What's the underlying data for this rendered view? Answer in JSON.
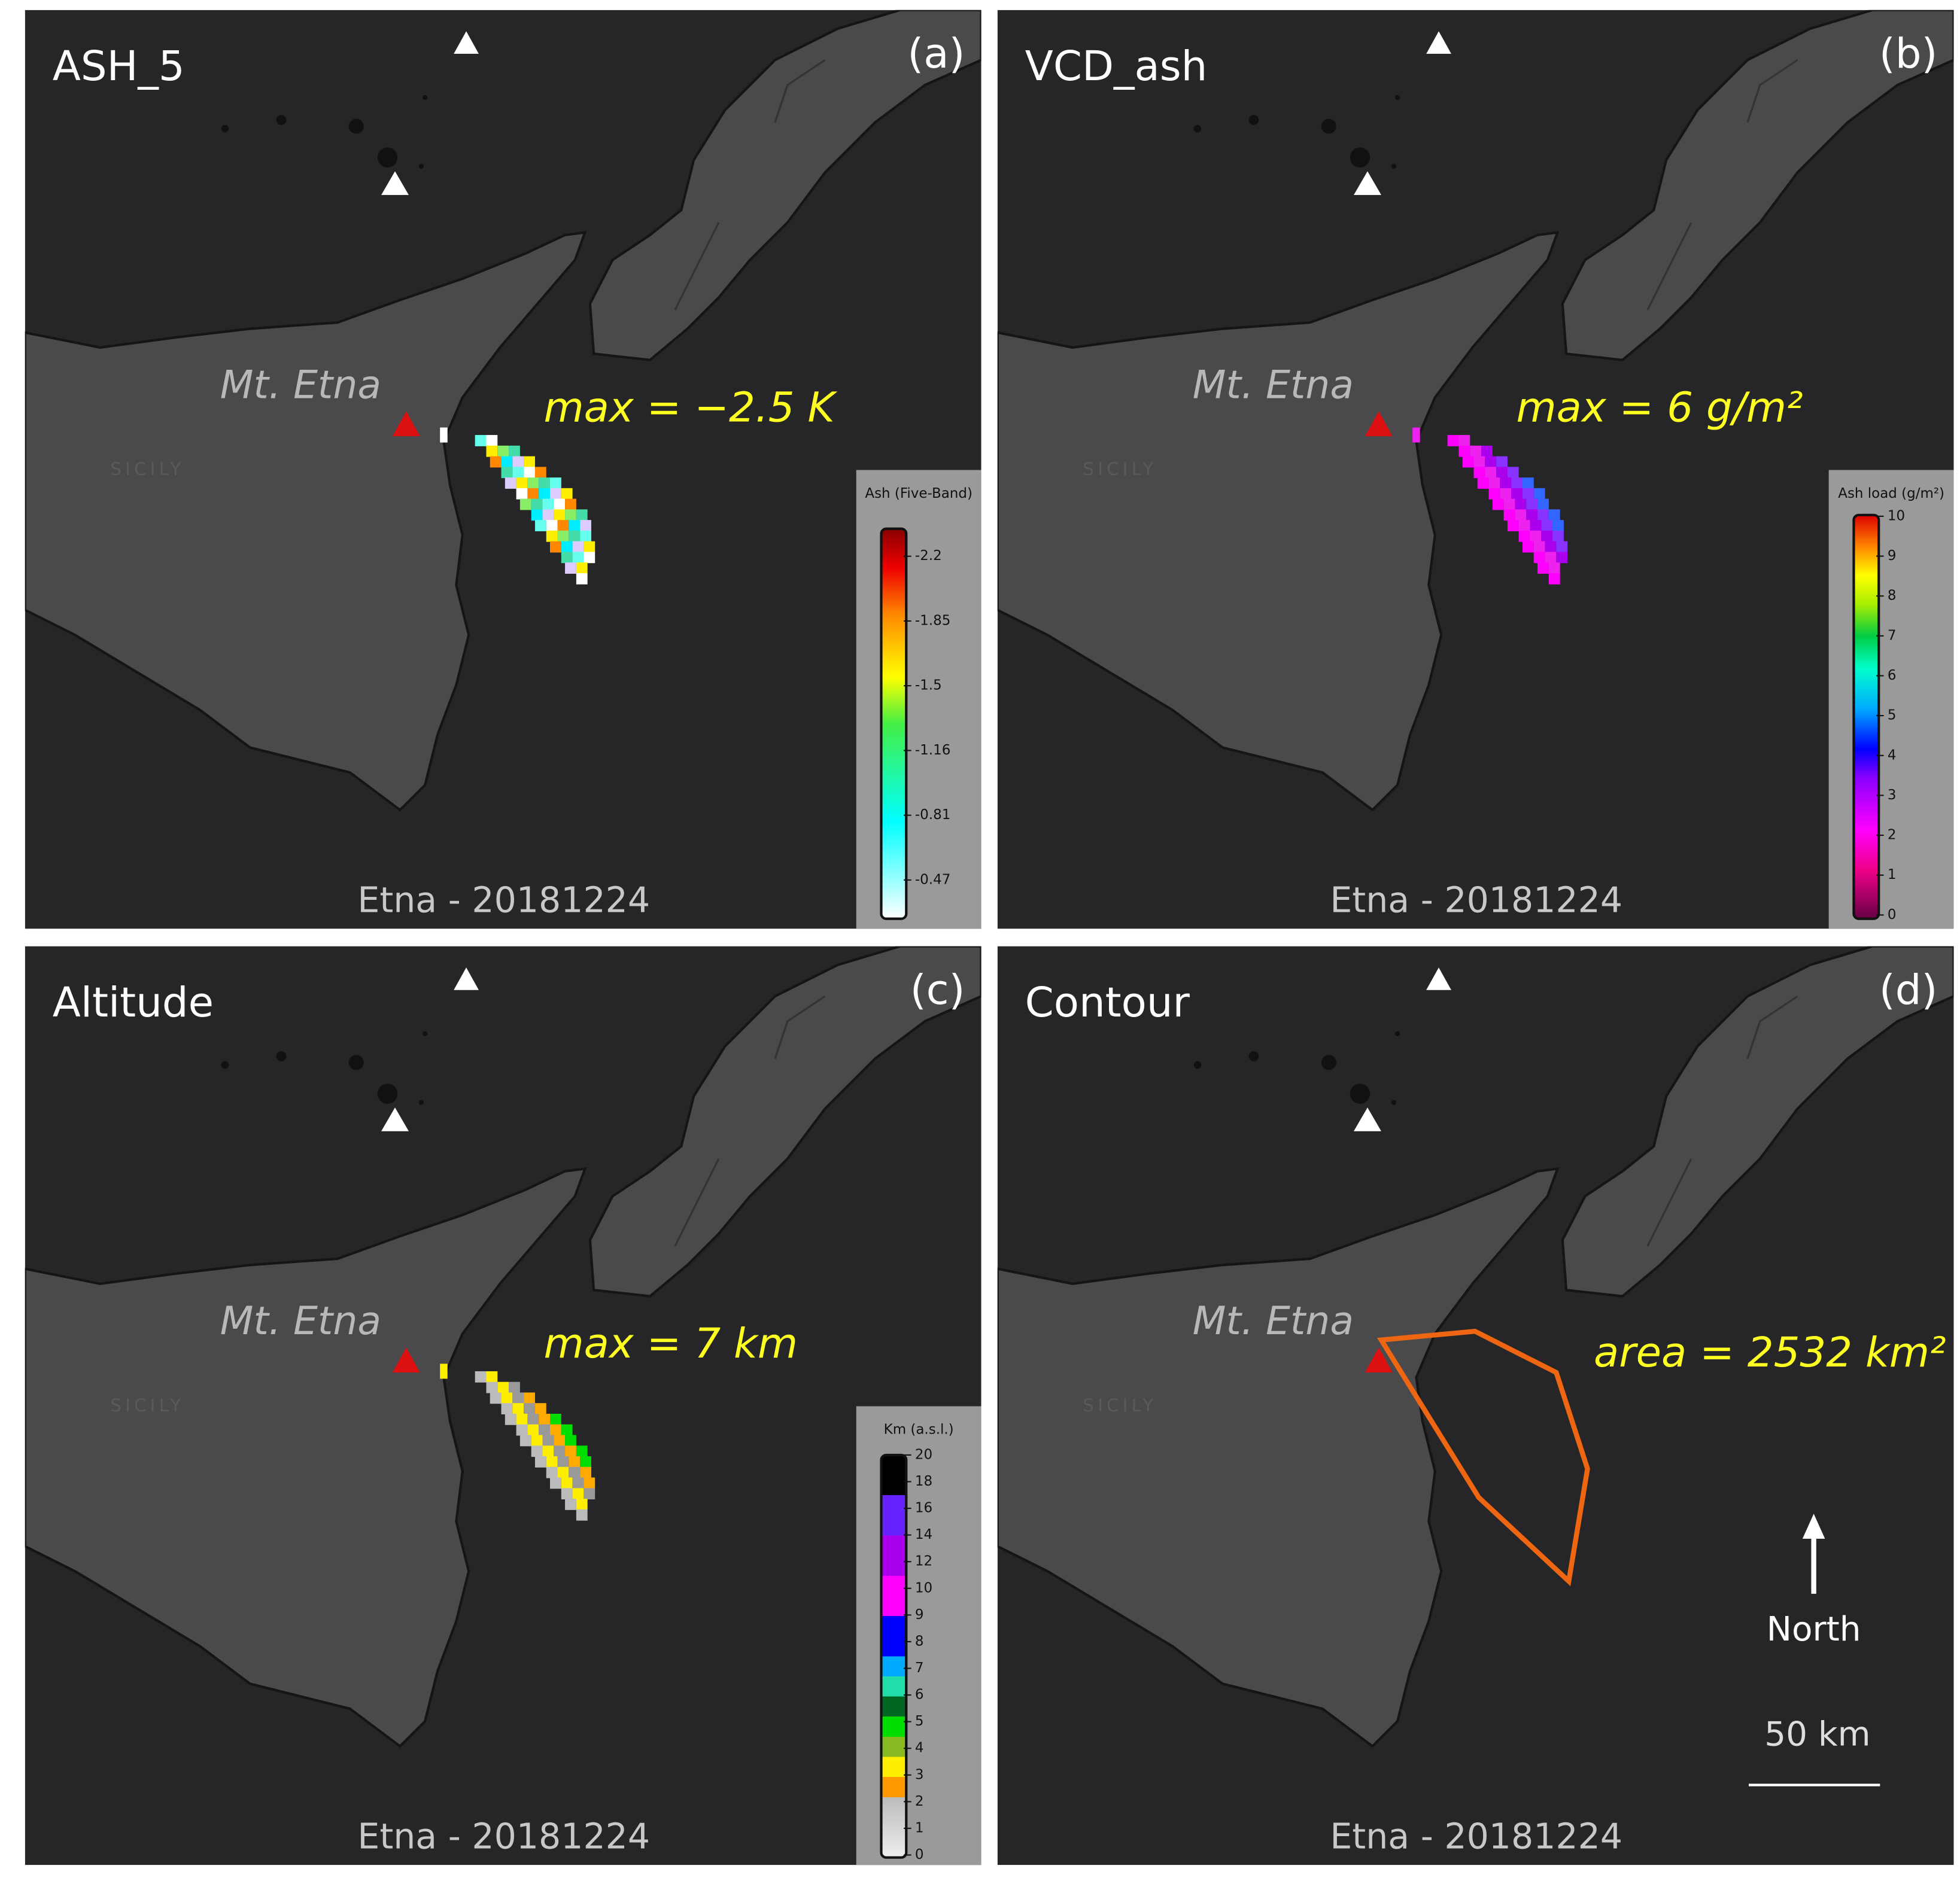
{
  "panels": [
    {
      "title": "ASH_5",
      "letter": "(a)",
      "place_label": "Mt. Etna",
      "region_label": "SICILY",
      "annotation": "max = −2.5 K",
      "footer": "Etna - 20181224",
      "colorbar": {
        "title": "Ash (Five-Band)",
        "ticks": [
          -2.2,
          -1.85,
          -1.5,
          -1.16,
          -0.81,
          -0.47
        ]
      }
    },
    {
      "title": "VCD_ash",
      "letter": "(b)",
      "place_label": "Mt. Etna",
      "region_label": "SICILY",
      "annotation": "max = 6 g/m²",
      "footer": "Etna - 20181224",
      "colorbar": {
        "title": "Ash load (g/m²)",
        "ticks": [
          10,
          9,
          8,
          7,
          6,
          5,
          4,
          3,
          2,
          1,
          0
        ]
      }
    },
    {
      "title": "Altitude",
      "letter": "(c)",
      "place_label": "Mt. Etna",
      "region_label": "SICILY",
      "annotation": "max = 7 km",
      "footer": "Etna - 20181224",
      "colorbar": {
        "title": "Km (a.s.l.)",
        "ticks": [
          20,
          18,
          16,
          14,
          12,
          10,
          9,
          8,
          7,
          6,
          5,
          4,
          3,
          2,
          1,
          0
        ]
      }
    },
    {
      "title": "Contour",
      "letter": "(d)",
      "place_label": "Mt. Etna",
      "region_label": "SICILY",
      "annotation": "area = 2532 km²",
      "footer": "Etna - 20181224",
      "north": "North",
      "scale": "50 km"
    }
  ]
}
